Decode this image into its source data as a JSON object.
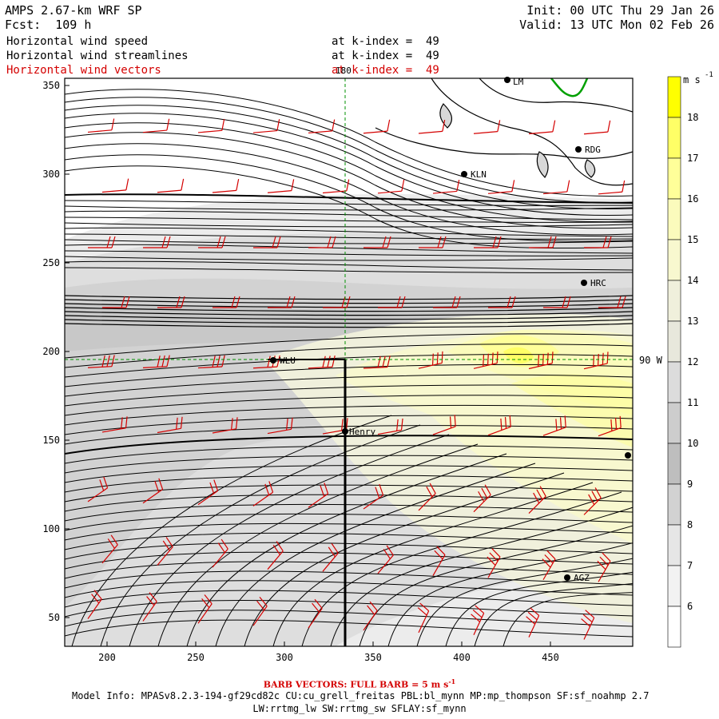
{
  "header": {
    "model_title": "AMPS 2.67-km WRF SP",
    "forecast": "Fcst:  109 h",
    "init": "Init: 00 UTC Thu 29 Jan 26",
    "valid": "Valid: 13 UTC Mon 02 Feb 26",
    "fields": [
      {
        "name": "Horizontal wind speed",
        "level": "at k-index =  49",
        "color": "#000000"
      },
      {
        "name": "Horizontal wind streamlines",
        "level": "at k-index =  49",
        "color": "#000000"
      },
      {
        "name": "Horizontal wind vectors",
        "level": "at k-index =  49",
        "color": "#d40000"
      }
    ]
  },
  "map": {
    "x_ticks": [
      "200",
      "250",
      "300",
      "350",
      "400",
      "450"
    ],
    "y_ticks": [
      "350",
      "300",
      "250",
      "200",
      "150",
      "100",
      "50"
    ],
    "meridian_label": "180",
    "parallel_label": "90 W",
    "stations": [
      {
        "name": "KLN"
      },
      {
        "name": "RDG"
      },
      {
        "name": "HRC"
      },
      {
        "name": "WLU"
      },
      {
        "name": "Henry"
      },
      {
        "name": "AGZ"
      },
      {
        "name": ""
      },
      {
        "name": "LM"
      }
    ]
  },
  "colorbar": {
    "unit": "m s",
    "unit_exponent": "-1",
    "labels": [
      "18",
      "17",
      "16",
      "15",
      "14",
      "13",
      "12",
      "11",
      "10",
      "9",
      "8",
      "7",
      "6"
    ],
    "colors": [
      "#ffff00",
      "#ffff66",
      "#ffff99",
      "#fbfbbc",
      "#f8f8cf",
      "#f0f0dc",
      "#e8e8dc",
      "#dcdcdc",
      "#cdcdcd",
      "#bebebe",
      "#d2d2d2",
      "#e6e6e6",
      "#f2f2f2",
      "#ffffff"
    ]
  },
  "footer": {
    "barb_note": "BARB VECTORS:  FULL BARB = 5 m s",
    "barb_exponent": "-1",
    "model_info": "Model Info: MPASv8.2.3-194-gf29cd82c CU:cu_grell_freitas PBL:bl_mynn MP:mp_thompson SF:sf_noahmp 2.7",
    "model_info_2": "LW:rrtmg_lw SW:rrtmg_sw SFLAY:sf_mynn"
  },
  "colors": {
    "streamline": "#000000",
    "barb": "#d40000",
    "coast": "#000000",
    "green_contour": "#00a000",
    "grid_line": "#009000"
  }
}
